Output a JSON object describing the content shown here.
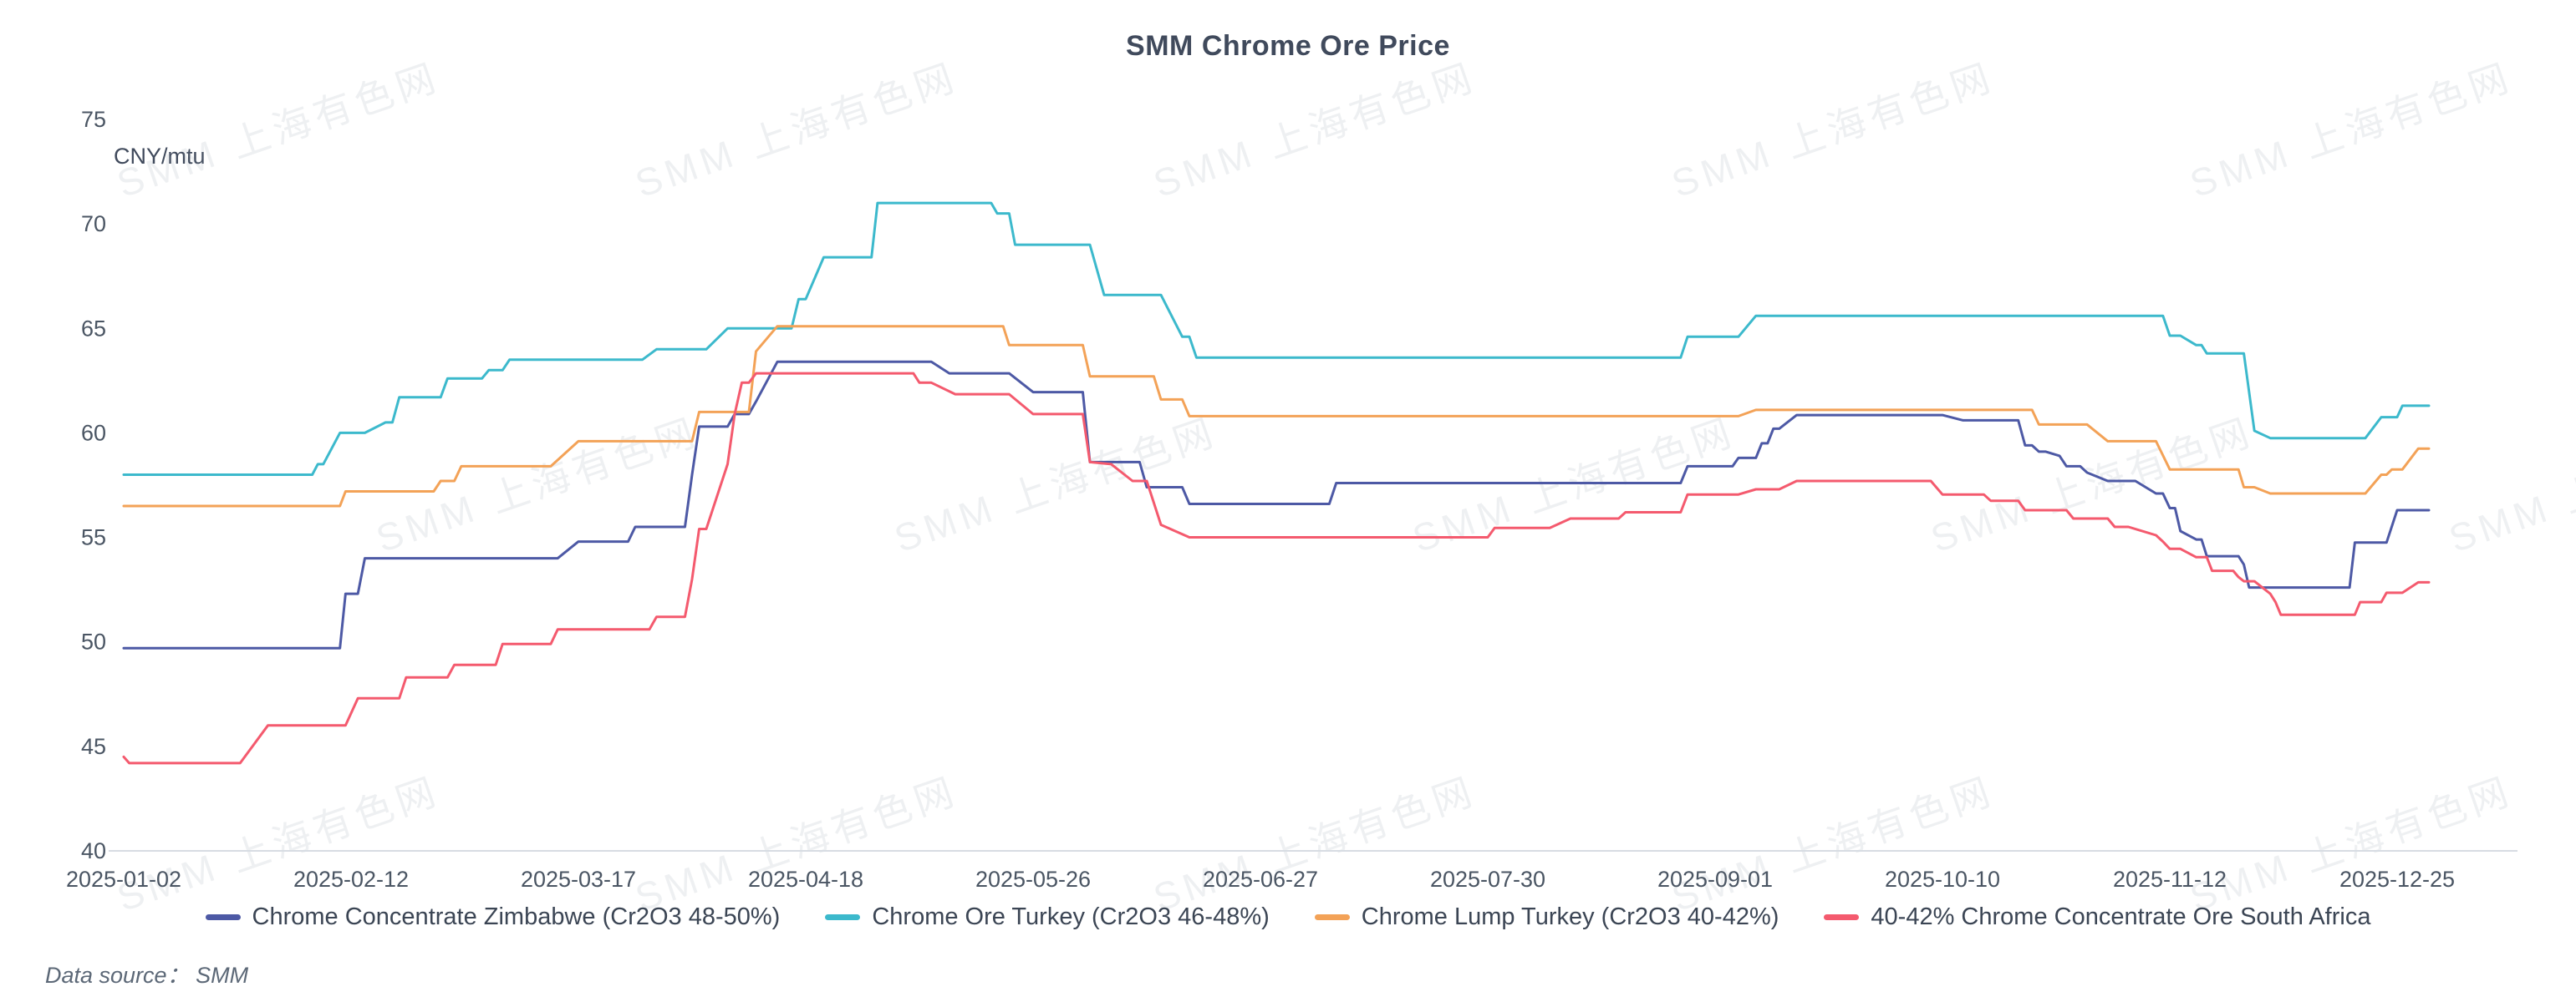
{
  "page": {
    "title": "SMM Chrome Ore Price"
  },
  "axis_unit_label": "CNY/mtu",
  "footer": {
    "data_source": "Data source：  SMM"
  },
  "watermark": {
    "text": "SMM 上海有色网"
  },
  "chart_data": {
    "type": "line",
    "title": "SMM Chrome Ore Price",
    "ylabel": "CNY/mtu",
    "xlabel": "",
    "ylim": [
      40,
      75
    ],
    "yticks": [
      40,
      45,
      50,
      55,
      60,
      65,
      70,
      75
    ],
    "grid": false,
    "legend_position": "bottom",
    "x_ticks": [
      "2025-01-02",
      "2025-02-12",
      "2025-03-17",
      "2025-04-18",
      "2025-05-26",
      "2025-06-27",
      "2025-07-30",
      "2025-09-01",
      "2025-10-10",
      "2025-11-12",
      "2025-12-25"
    ],
    "series": [
      {
        "name": "Chrome Concentrate Zimbabwe  (Cr2O3 48-50%)",
        "color": "#4d59a5",
        "points": [
          [
            "2025-01-02",
            49.7
          ],
          [
            "2025-02-10",
            49.7
          ],
          [
            "2025-02-11",
            52.3
          ],
          [
            "2025-02-13",
            52.3
          ],
          [
            "2025-02-14",
            54
          ],
          [
            "2025-03-14",
            54
          ],
          [
            "2025-03-17",
            54.8
          ],
          [
            "2025-03-24",
            54.8
          ],
          [
            "2025-03-25",
            55.5
          ],
          [
            "2025-04-01",
            55.5
          ],
          [
            "2025-04-02",
            58
          ],
          [
            "2025-04-03",
            60.3
          ],
          [
            "2025-04-07",
            60.3
          ],
          [
            "2025-04-08",
            60.9
          ],
          [
            "2025-04-10",
            60.9
          ],
          [
            "2025-04-11",
            61.5
          ],
          [
            "2025-04-14",
            63.4
          ],
          [
            "2025-05-09",
            63.4
          ],
          [
            "2025-05-12",
            62.85
          ],
          [
            "2025-05-22",
            62.85
          ],
          [
            "2025-05-26",
            61.95
          ],
          [
            "2025-06-02",
            61.95
          ],
          [
            "2025-06-03",
            58.6
          ],
          [
            "2025-06-10",
            58.6
          ],
          [
            "2025-06-11",
            57.4
          ],
          [
            "2025-06-16",
            57.4
          ],
          [
            "2025-06-17",
            56.6
          ],
          [
            "2025-07-07",
            56.6
          ],
          [
            "2025-07-08",
            57.6
          ],
          [
            "2025-08-27",
            57.6
          ],
          [
            "2025-08-28",
            58.4
          ],
          [
            "2025-09-04",
            58.4
          ],
          [
            "2025-09-05",
            58.8
          ],
          [
            "2025-09-08",
            58.8
          ],
          [
            "2025-09-09",
            59.5
          ],
          [
            "2025-09-10",
            59.5
          ],
          [
            "2025-09-11",
            60.2
          ],
          [
            "2025-09-12",
            60.2
          ],
          [
            "2025-09-15",
            60.85
          ],
          [
            "2025-10-10",
            60.85
          ],
          [
            "2025-10-13",
            60.6
          ],
          [
            "2025-10-21",
            60.6
          ],
          [
            "2025-10-22",
            59.4
          ],
          [
            "2025-10-23",
            59.4
          ],
          [
            "2025-10-24",
            59.1
          ],
          [
            "2025-10-25",
            59.1
          ],
          [
            "2025-10-27",
            58.9
          ],
          [
            "2025-10-28",
            58.4
          ],
          [
            "2025-10-30",
            58.4
          ],
          [
            "2025-10-31",
            58.1
          ],
          [
            "2025-11-03",
            57.7
          ],
          [
            "2025-11-07",
            57.7
          ],
          [
            "2025-11-10",
            57.1
          ],
          [
            "2025-11-11",
            57.1
          ],
          [
            "2025-11-12",
            56.4
          ],
          [
            "2025-11-13",
            56.4
          ],
          [
            "2025-11-14",
            55.3
          ],
          [
            "2025-11-17",
            54.9
          ],
          [
            "2025-11-18",
            54.9
          ],
          [
            "2025-11-19",
            54.1
          ],
          [
            "2025-11-25",
            54.1
          ],
          [
            "2025-11-26",
            53.7
          ],
          [
            "2025-11-27",
            52.6
          ],
          [
            "2025-12-16",
            52.6
          ],
          [
            "2025-12-17",
            54.75
          ],
          [
            "2025-12-23",
            54.75
          ],
          [
            "2025-12-25",
            56.3
          ],
          [
            "2025-12-31",
            56.3
          ]
        ]
      },
      {
        "name": "Chrome Ore Turkey (Cr2O3 46-48%)",
        "color": "#3cb9cc",
        "points": [
          [
            "2025-01-02",
            58
          ],
          [
            "2025-02-05",
            58
          ],
          [
            "2025-02-06",
            58.5
          ],
          [
            "2025-02-07",
            58.5
          ],
          [
            "2025-02-10",
            60
          ],
          [
            "2025-02-14",
            60
          ],
          [
            "2025-02-17",
            60.5
          ],
          [
            "2025-02-18",
            60.5
          ],
          [
            "2025-02-19",
            61.7
          ],
          [
            "2025-02-25",
            61.7
          ],
          [
            "2025-02-26",
            62.6
          ],
          [
            "2025-03-03",
            62.6
          ],
          [
            "2025-03-04",
            63
          ],
          [
            "2025-03-06",
            63
          ],
          [
            "2025-03-07",
            63.5
          ],
          [
            "2025-03-26",
            63.5
          ],
          [
            "2025-03-28",
            64
          ],
          [
            "2025-04-04",
            64
          ],
          [
            "2025-04-07",
            65
          ],
          [
            "2025-04-16",
            65
          ],
          [
            "2025-04-17",
            66.4
          ],
          [
            "2025-04-18",
            66.4
          ],
          [
            "2025-04-21",
            68.4
          ],
          [
            "2025-04-29",
            68.4
          ],
          [
            "2025-04-30",
            71
          ],
          [
            "2025-05-19",
            71
          ],
          [
            "2025-05-20",
            70.5
          ],
          [
            "2025-05-22",
            70.5
          ],
          [
            "2025-05-23",
            69
          ],
          [
            "2025-06-03",
            69
          ],
          [
            "2025-06-05",
            66.6
          ],
          [
            "2025-06-13",
            66.6
          ],
          [
            "2025-06-16",
            64.6
          ],
          [
            "2025-06-17",
            64.6
          ],
          [
            "2025-06-18",
            63.6
          ],
          [
            "2025-08-27",
            63.6
          ],
          [
            "2025-08-28",
            64.6
          ],
          [
            "2025-09-05",
            64.6
          ],
          [
            "2025-09-08",
            65.6
          ],
          [
            "2025-11-11",
            65.6
          ],
          [
            "2025-11-12",
            64.65
          ],
          [
            "2025-11-14",
            64.65
          ],
          [
            "2025-11-17",
            64.2
          ],
          [
            "2025-11-18",
            64.2
          ],
          [
            "2025-11-19",
            63.8
          ],
          [
            "2025-11-26",
            63.8
          ],
          [
            "2025-11-28",
            60.1
          ],
          [
            "2025-12-01",
            59.75
          ],
          [
            "2025-12-19",
            59.75
          ],
          [
            "2025-12-22",
            60.75
          ],
          [
            "2025-12-25",
            60.75
          ],
          [
            "2025-12-26",
            61.3
          ],
          [
            "2025-12-31",
            61.3
          ]
        ]
      },
      {
        "name": "Chrome Lump Turkey (Cr2O3 40-42%)",
        "color": "#f3a257",
        "points": [
          [
            "2025-01-02",
            56.5
          ],
          [
            "2025-02-10",
            56.5
          ],
          [
            "2025-02-11",
            57.2
          ],
          [
            "2025-02-24",
            57.2
          ],
          [
            "2025-02-25",
            57.7
          ],
          [
            "2025-02-27",
            57.7
          ],
          [
            "2025-02-28",
            58.4
          ],
          [
            "2025-03-13",
            58.4
          ],
          [
            "2025-03-17",
            59.6
          ],
          [
            "2025-04-02",
            59.6
          ],
          [
            "2025-04-03",
            61
          ],
          [
            "2025-04-10",
            61
          ],
          [
            "2025-04-11",
            63.9
          ],
          [
            "2025-04-14",
            65.1
          ],
          [
            "2025-05-21",
            65.1
          ],
          [
            "2025-05-22",
            64.2
          ],
          [
            "2025-06-02",
            64.2
          ],
          [
            "2025-06-03",
            62.7
          ],
          [
            "2025-06-12",
            62.7
          ],
          [
            "2025-06-13",
            61.6
          ],
          [
            "2025-06-16",
            61.6
          ],
          [
            "2025-06-17",
            60.8
          ],
          [
            "2025-09-05",
            60.8
          ],
          [
            "2025-09-08",
            61.1
          ],
          [
            "2025-10-23",
            61.1
          ],
          [
            "2025-10-24",
            60.4
          ],
          [
            "2025-10-31",
            60.4
          ],
          [
            "2025-11-03",
            59.6
          ],
          [
            "2025-11-10",
            59.6
          ],
          [
            "2025-11-12",
            58.25
          ],
          [
            "2025-11-25",
            58.25
          ],
          [
            "2025-11-26",
            57.4
          ],
          [
            "2025-11-28",
            57.4
          ],
          [
            "2025-12-01",
            57.1
          ],
          [
            "2025-12-19",
            57.1
          ],
          [
            "2025-12-22",
            58
          ],
          [
            "2025-12-23",
            58
          ],
          [
            "2025-12-24",
            58.25
          ],
          [
            "2025-12-26",
            58.25
          ],
          [
            "2025-12-29",
            59.25
          ],
          [
            "2025-12-31",
            59.25
          ]
        ]
      },
      {
        "name": "40-42% Chrome Concentrate Ore South Africa",
        "color": "#f45a6e",
        "points": [
          [
            "2025-01-02",
            44.5
          ],
          [
            "2025-01-03",
            44.2
          ],
          [
            "2025-01-23",
            44.2
          ],
          [
            "2025-01-28",
            46
          ],
          [
            "2025-02-11",
            46
          ],
          [
            "2025-02-13",
            47.3
          ],
          [
            "2025-02-19",
            47.3
          ],
          [
            "2025-02-20",
            48.3
          ],
          [
            "2025-02-26",
            48.3
          ],
          [
            "2025-02-27",
            48.9
          ],
          [
            "2025-03-05",
            48.9
          ],
          [
            "2025-03-06",
            49.9
          ],
          [
            "2025-03-13",
            49.9
          ],
          [
            "2025-03-14",
            50.6
          ],
          [
            "2025-03-27",
            50.6
          ],
          [
            "2025-03-28",
            51.2
          ],
          [
            "2025-04-01",
            51.2
          ],
          [
            "2025-04-02",
            53
          ],
          [
            "2025-04-03",
            55.4
          ],
          [
            "2025-04-04",
            55.4
          ],
          [
            "2025-04-07",
            58.5
          ],
          [
            "2025-04-08",
            60.9
          ],
          [
            "2025-04-09",
            62.4
          ],
          [
            "2025-04-10",
            62.4
          ],
          [
            "2025-04-11",
            62.85
          ],
          [
            "2025-05-06",
            62.85
          ],
          [
            "2025-05-07",
            62.4
          ],
          [
            "2025-05-09",
            62.4
          ],
          [
            "2025-05-13",
            61.85
          ],
          [
            "2025-05-22",
            61.85
          ],
          [
            "2025-05-26",
            60.9
          ],
          [
            "2025-06-02",
            60.9
          ],
          [
            "2025-06-03",
            58.6
          ],
          [
            "2025-06-06",
            58.5
          ],
          [
            "2025-06-09",
            57.7
          ],
          [
            "2025-06-11",
            57.7
          ],
          [
            "2025-06-13",
            55.6
          ],
          [
            "2025-06-16",
            55.15
          ],
          [
            "2025-06-17",
            55
          ],
          [
            "2025-07-30",
            55
          ],
          [
            "2025-07-31",
            55.45
          ],
          [
            "2025-08-08",
            55.45
          ],
          [
            "2025-08-11",
            55.9
          ],
          [
            "2025-08-18",
            55.9
          ],
          [
            "2025-08-19",
            56.2
          ],
          [
            "2025-08-27",
            56.2
          ],
          [
            "2025-08-28",
            57.05
          ],
          [
            "2025-09-05",
            57.05
          ],
          [
            "2025-09-08",
            57.3
          ],
          [
            "2025-09-12",
            57.3
          ],
          [
            "2025-09-15",
            57.7
          ],
          [
            "2025-10-08",
            57.7
          ],
          [
            "2025-10-10",
            57.05
          ],
          [
            "2025-10-16",
            57.05
          ],
          [
            "2025-10-17",
            56.75
          ],
          [
            "2025-10-21",
            56.75
          ],
          [
            "2025-10-22",
            56.3
          ],
          [
            "2025-10-28",
            56.3
          ],
          [
            "2025-10-29",
            55.9
          ],
          [
            "2025-11-03",
            55.9
          ],
          [
            "2025-11-04",
            55.5
          ],
          [
            "2025-11-06",
            55.5
          ],
          [
            "2025-11-10",
            55.1
          ],
          [
            "2025-11-11",
            54.8
          ],
          [
            "2025-11-12",
            54.45
          ],
          [
            "2025-11-14",
            54.45
          ],
          [
            "2025-11-17",
            54.05
          ],
          [
            "2025-11-19",
            54.05
          ],
          [
            "2025-11-20",
            53.4
          ],
          [
            "2025-11-24",
            53.4
          ],
          [
            "2025-11-25",
            53.1
          ],
          [
            "2025-11-26",
            52.9
          ],
          [
            "2025-11-28",
            52.9
          ],
          [
            "2025-12-01",
            52.3
          ],
          [
            "2025-12-02",
            51.9
          ],
          [
            "2025-12-03",
            51.3
          ],
          [
            "2025-12-17",
            51.3
          ],
          [
            "2025-12-18",
            51.9
          ],
          [
            "2025-12-22",
            51.9
          ],
          [
            "2025-12-23",
            52.35
          ],
          [
            "2025-12-26",
            52.35
          ],
          [
            "2025-12-29",
            52.85
          ],
          [
            "2025-12-31",
            52.85
          ]
        ]
      }
    ],
    "style": {
      "axis_line_color": "#d7dce3",
      "tick_label_color": "#4a5563",
      "title_color": "#404a5c",
      "background": "#ffffff",
      "line_width": 3
    }
  }
}
